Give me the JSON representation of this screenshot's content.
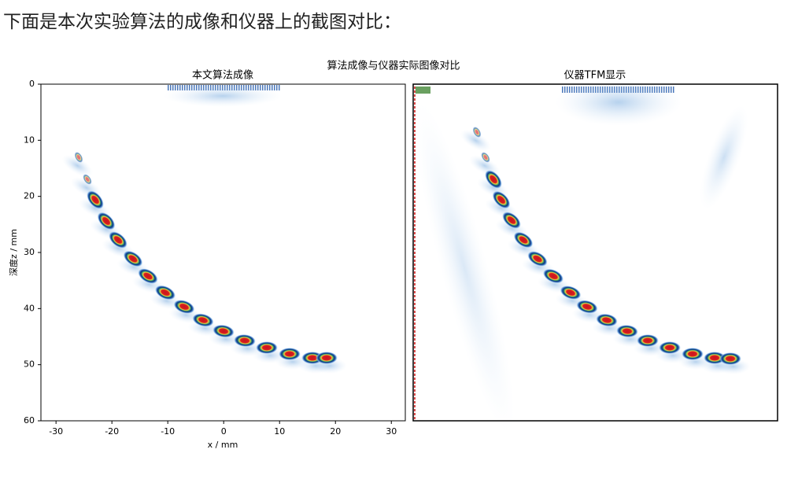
{
  "heading": "下面是本次实验算法的成像和仪器上的截图对比：",
  "figure": {
    "title": "算法成像与仪器实际图像对比",
    "left": {
      "title": "本文算法成像",
      "xlabel": "x / mm",
      "ylabel": "深度z / mm",
      "xlim": [
        -32.7,
        32.5
      ],
      "ylim": [
        0,
        60
      ],
      "xticks": [
        -30,
        -20,
        -10,
        0,
        10,
        20,
        30
      ],
      "yticks": [
        0,
        10,
        20,
        30,
        40,
        50,
        60
      ]
    },
    "right": {
      "title": "仪器TFM显示"
    }
  }
}
